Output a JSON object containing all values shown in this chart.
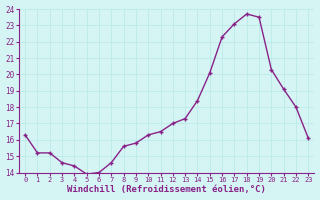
{
  "x": [
    0,
    1,
    2,
    3,
    4,
    5,
    6,
    7,
    8,
    9,
    10,
    11,
    12,
    13,
    14,
    15,
    16,
    17,
    18,
    19,
    20,
    21,
    22,
    23
  ],
  "y": [
    16.3,
    15.2,
    15.2,
    14.6,
    14.4,
    13.9,
    14.0,
    14.6,
    15.6,
    15.8,
    16.3,
    16.5,
    17.0,
    17.3,
    18.4,
    20.1,
    22.3,
    23.1,
    23.7,
    23.5,
    20.3,
    19.1,
    18.0,
    16.1
  ],
  "line_color": "#882288",
  "marker": "+",
  "marker_size": 3.5,
  "marker_lw": 1.0,
  "line_width": 1.0,
  "xlabel": "Windchill (Refroidissement éolien,°C)",
  "xlabel_fontsize": 6.5,
  "ylim": [
    14,
    24
  ],
  "yticks": [
    14,
    15,
    16,
    17,
    18,
    19,
    20,
    21,
    22,
    23,
    24
  ],
  "xticks": [
    0,
    1,
    2,
    3,
    4,
    5,
    6,
    7,
    8,
    9,
    10,
    11,
    12,
    13,
    14,
    15,
    16,
    17,
    18,
    19,
    20,
    21,
    22,
    23
  ],
  "bg_color": "#d5f4f4",
  "grid_color": "#b8e8e8",
  "tick_label_color": "#882288",
  "ytick_fontsize": 5.5,
  "xtick_fontsize": 5.0
}
